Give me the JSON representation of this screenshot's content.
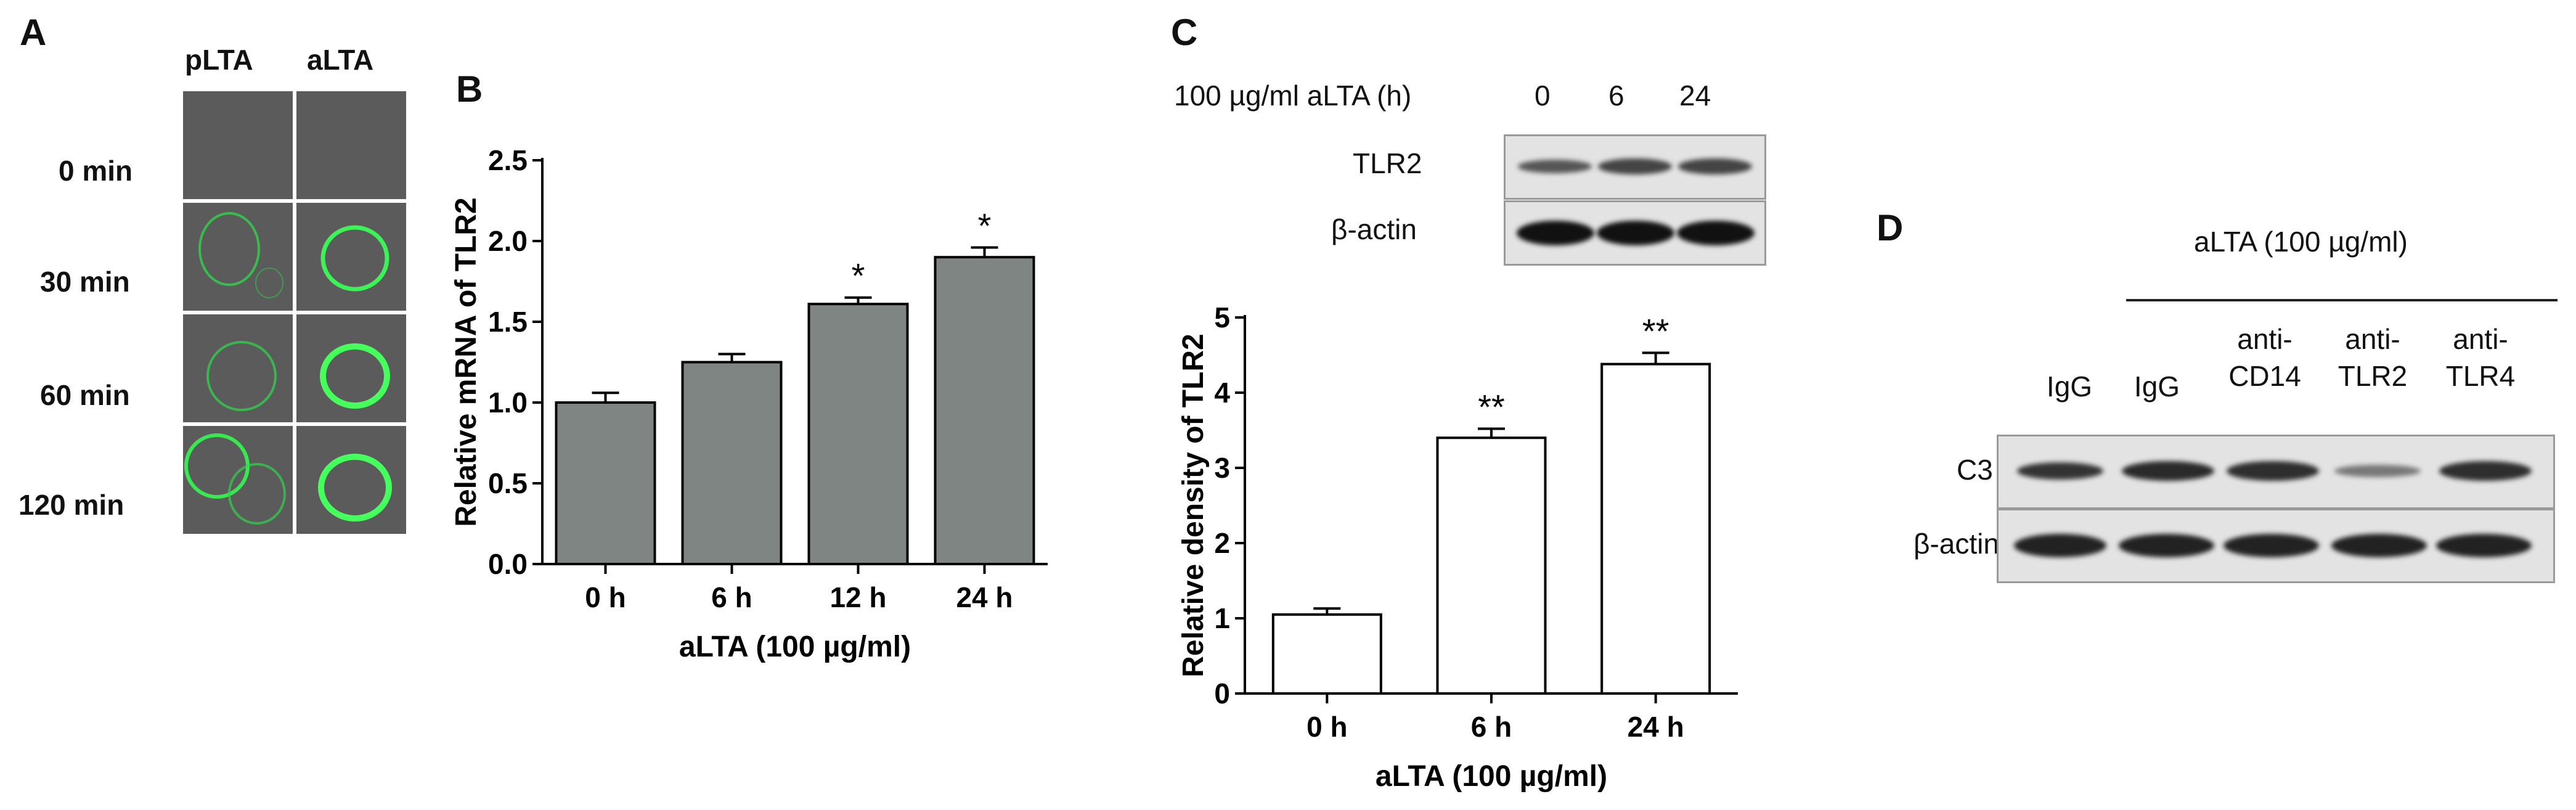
{
  "panel_a": {
    "letter": "A",
    "columns": [
      "pLTA",
      "aLTA"
    ],
    "rows": [
      "0 min",
      "30 min",
      "60 min",
      "120 min"
    ]
  },
  "panel_b": {
    "letter": "B"
  },
  "panel_c": {
    "letter": "C",
    "treatment_label": "100 µg/ml aLTA (h)",
    "lanes": [
      "0",
      "6",
      "24"
    ],
    "blot_rows": [
      "TLR2",
      "β-actin"
    ]
  },
  "panel_d": {
    "letter": "D",
    "header": "aLTA (100 µg/ml)",
    "lanes": [
      [
        "IgG"
      ],
      [
        "IgG"
      ],
      [
        "anti-",
        "CD14"
      ],
      [
        "anti-",
        "TLR2"
      ],
      [
        "anti-",
        "TLR4"
      ]
    ],
    "blot_rows": [
      "C3",
      "β-actin"
    ]
  },
  "chart_data": [
    {
      "type": "bar",
      "panel": "B",
      "categories": [
        "0 h",
        "6 h",
        "12 h",
        "24 h"
      ],
      "values": [
        1.0,
        1.25,
        1.61,
        1.9
      ],
      "errors": [
        0.06,
        0.05,
        0.04,
        0.06
      ],
      "significance": [
        "",
        "",
        "*",
        "*"
      ],
      "xlabel": "aLTA (100 µg/ml)",
      "ylabel": "Relative mRNA of TLR2",
      "ylim": [
        0,
        2.5
      ],
      "yticks": [
        "0.0",
        "0.5",
        "1.0",
        "1.5",
        "2.0",
        "2.5"
      ],
      "bar_color": "#7f8582"
    },
    {
      "type": "bar",
      "panel": "C",
      "categories": [
        "0 h",
        "6 h",
        "24 h"
      ],
      "values": [
        1.05,
        3.4,
        4.38
      ],
      "errors": [
        0.08,
        0.12,
        0.15
      ],
      "significance": [
        "",
        "**",
        "**"
      ],
      "xlabel": "aLTA (100 µg/ml)",
      "ylabel": "Relative density of TLR2",
      "ylim": [
        0,
        5
      ],
      "yticks": [
        "0",
        "1",
        "2",
        "3",
        "4",
        "5"
      ],
      "bar_color": "#ffffff"
    }
  ]
}
